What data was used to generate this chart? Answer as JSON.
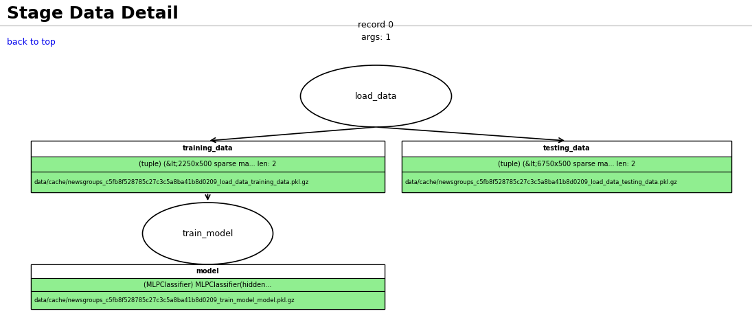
{
  "title": "Stage Data Detail",
  "back_to_top_text": "back to top",
  "back_to_top_color": "#0000EE",
  "background_color": "#FFFFFF",
  "graph_bg_color": "#90EE90",
  "graph_label_line1": "record 0",
  "graph_label_line2": "args: 1",
  "load_data_label": "load_data",
  "training_data_header": "training_data",
  "training_data_type": "(tuple) (&lt;2250x500 sparse ma... len: 2",
  "training_data_path": "data/cache/newsgroups_c5fb8f528785c27c3c5a8ba41b8d0209_load_data_training_data.pkl.gz",
  "testing_data_header": "testing_data",
  "testing_data_type": "(tuple) (&lt;6750x500 sparse ma... len: 2",
  "testing_data_path": "data/cache/newsgroups_c5fb8f528785c27c3c5a8ba41b8d0209_load_data_testing_data.pkl.gz",
  "train_model_label": "train_model",
  "model_header": "model",
  "model_type": "(MLPClassifier) MLPClassifier(hidden...",
  "model_path": "data/cache/newsgroups_c5fb8f528785c27c3c5a8ba41b8d0209_train_model_model.pkl.gz",
  "node_fill": "#FFFFFF",
  "node_border": "#000000",
  "header_bg": "#FFFFFF",
  "row_bg": "#90EE90",
  "title_fontsize": 18,
  "back_fontsize": 9
}
